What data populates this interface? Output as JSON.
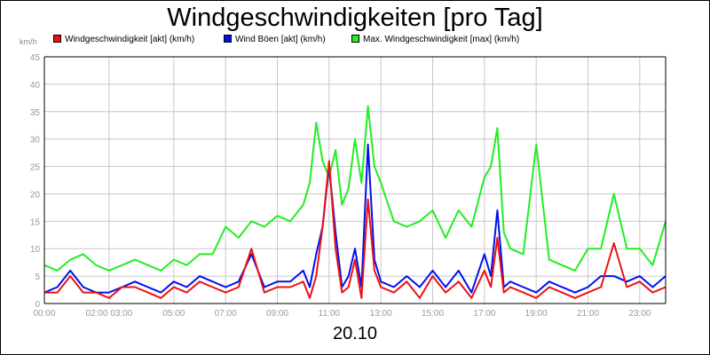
{
  "chart_data": {
    "type": "line",
    "title": "Windgeschwindigkeiten [pro Tag]",
    "ylabel": "km/h",
    "xlabel": "20.10",
    "ylim": [
      0,
      45
    ],
    "yticks": [
      "0",
      "5",
      "10",
      "15",
      "20",
      "25",
      "30",
      "35",
      "40",
      "45"
    ],
    "xlim": [
      0,
      24
    ],
    "xticks": [
      {
        "h": 0,
        "label": "00:00"
      },
      {
        "h": 2.5,
        "label": "02:00 03:00"
      },
      {
        "h": 5,
        "label": "05:00"
      },
      {
        "h": 7,
        "label": "07:00"
      },
      {
        "h": 9,
        "label": "09:00"
      },
      {
        "h": 11,
        "label": "11:00"
      },
      {
        "h": 13,
        "label": "13:00"
      },
      {
        "h": 15,
        "label": "15:00"
      },
      {
        "h": 17,
        "label": "17:00"
      },
      {
        "h": 19,
        "label": "19:00"
      },
      {
        "h": 21,
        "label": "21:00"
      },
      {
        "h": 23,
        "label": "23:00"
      }
    ],
    "grid": true,
    "legend_position": "top",
    "x": [
      0,
      0.5,
      1,
      1.5,
      2,
      2.5,
      3,
      3.5,
      4,
      4.5,
      5,
      5.5,
      6,
      6.5,
      7,
      7.5,
      8,
      8.5,
      9,
      9.5,
      10,
      10.25,
      10.5,
      10.75,
      11,
      11.25,
      11.5,
      11.75,
      12,
      12.25,
      12.5,
      12.75,
      13,
      13.5,
      14,
      14.5,
      15,
      15.5,
      16,
      16.5,
      17,
      17.25,
      17.5,
      17.75,
      18,
      18.5,
      19,
      19.5,
      20,
      20.5,
      21,
      21.5,
      22,
      22.5,
      23,
      23.5,
      24
    ],
    "series": [
      {
        "name": "Windgeschwindigkeit [akt] (km/h)",
        "color": "#ee1111",
        "values": [
          2,
          2,
          5,
          2,
          2,
          1,
          3,
          3,
          2,
          1,
          3,
          2,
          4,
          3,
          2,
          3,
          10,
          2,
          3,
          3,
          4,
          1,
          5,
          14,
          26,
          10,
          2,
          3,
          8,
          1,
          19,
          6,
          3,
          2,
          4,
          1,
          5,
          2,
          4,
          1,
          6,
          3,
          12,
          2,
          3,
          2,
          1,
          3,
          2,
          1,
          2,
          3,
          11,
          3,
          4,
          2,
          3
        ]
      },
      {
        "name": "Wind Böen [akt] (km/h)",
        "color": "#0011ee",
        "values": [
          2,
          3,
          6,
          3,
          2,
          2,
          3,
          4,
          3,
          2,
          4,
          3,
          5,
          4,
          3,
          4,
          9,
          3,
          4,
          4,
          6,
          3,
          9,
          14,
          25,
          13,
          3,
          5,
          10,
          3,
          29,
          8,
          4,
          3,
          5,
          3,
          6,
          3,
          6,
          2,
          9,
          5,
          17,
          3,
          4,
          3,
          2,
          4,
          3,
          2,
          3,
          5,
          5,
          4,
          5,
          3,
          5
        ]
      },
      {
        "name": "Max. Windgeschwindigkeit [max] (km/h)",
        "color": "#22ee22",
        "values": [
          7,
          6,
          8,
          9,
          7,
          6,
          7,
          8,
          7,
          6,
          8,
          7,
          9,
          9,
          14,
          12,
          15,
          14,
          16,
          15,
          18,
          22,
          33,
          26,
          23,
          28,
          18,
          21,
          30,
          22,
          36,
          25,
          22,
          15,
          14,
          15,
          17,
          12,
          17,
          14,
          23,
          25,
          32,
          13,
          10,
          9,
          29,
          8,
          7,
          6,
          10,
          10,
          20,
          10,
          10,
          7,
          15
        ]
      }
    ]
  }
}
